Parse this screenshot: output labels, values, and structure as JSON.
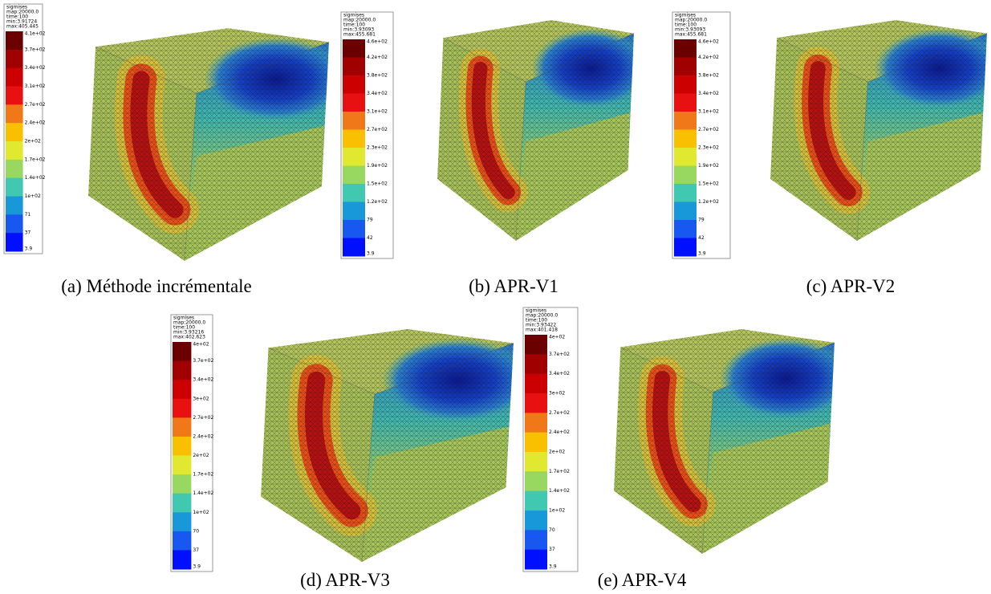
{
  "panels": [
    {
      "legend": {
        "header": [
          "sigmises",
          "map:20000.0",
          "time:100",
          "min:3.91724",
          "max:405.445"
        ],
        "labels": [
          "4.1e+02",
          "3.7e+02",
          "3.4e+02",
          "3.1e+02",
          "2.7e+02",
          "2.4e+02",
          "2e+02",
          "1.7e+02",
          "1.4e+02",
          "1e+02",
          "71",
          "37",
          "3.9"
        ]
      },
      "caption": "(a) Méthode incrémentale"
    },
    {
      "legend": {
        "header": [
          "sigmises",
          "map:20000.0",
          "time:100",
          "min:3.93093",
          "max:455.681"
        ],
        "labels": [
          "4.6e+02",
          "4.2e+02",
          "3.8e+02",
          "3.4e+02",
          "3.1e+02",
          "2.7e+02",
          "2.3e+02",
          "1.9e+02",
          "1.5e+02",
          "1.2e+02",
          "79",
          "42",
          "3.9"
        ]
      },
      "caption": "(b) APR-V1"
    },
    {
      "legend": {
        "header": [
          "sigmises",
          "map:20000.0",
          "time:100",
          "min:3.93093",
          "max:455.681"
        ],
        "labels": [
          "4.6e+02",
          "4.2e+02",
          "3.8e+02",
          "3.4e+02",
          "3.1e+02",
          "2.7e+02",
          "2.3e+02",
          "1.9e+02",
          "1.5e+02",
          "1.2e+02",
          "79",
          "42",
          "3.9"
        ]
      },
      "caption": "(c) APR-V2"
    },
    {
      "legend": {
        "header": [
          "sigmises",
          "map:20000.0",
          "time:100",
          "min:3.93216",
          "max:402.623"
        ],
        "labels": [
          "4e+02",
          "3.7e+02",
          "3.4e+02",
          "3e+02",
          "2.7e+02",
          "2.4e+02",
          "2e+02",
          "1.7e+02",
          "1.4e+02",
          "1e+02",
          "70",
          "37",
          "3.9"
        ]
      },
      "caption": "(d) APR-V3"
    },
    {
      "legend": {
        "header": [
          "sigmises",
          "map:20000.0",
          "time:100",
          "min:3.93422",
          "max:401.418"
        ],
        "labels": [
          "4e+02",
          "3.7e+02",
          "3.4e+02",
          "3e+02",
          "2.7e+02",
          "2.4e+02",
          "2e+02",
          "1.7e+02",
          "1.4e+02",
          "1e+02",
          "70",
          "37",
          "3.9"
        ]
      },
      "caption": "(e) APR-V4"
    }
  ]
}
